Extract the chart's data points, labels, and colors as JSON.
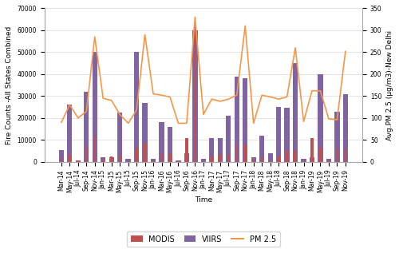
{
  "time_labels": [
    "Mar-14",
    "May-14",
    "Jul-14",
    "Sep-14",
    "Nov-14",
    "Jan-15",
    "Mar-15",
    "May-15",
    "Jul-15",
    "Sep-15",
    "Nov-15",
    "Jan-16",
    "Mar-16",
    "May-16",
    "Jul-16",
    "Sep-16",
    "Nov-16",
    "Jan-17",
    "Mar-17",
    "May-17",
    "Jul-17",
    "Sep-17",
    "Nov-17",
    "Jan-18",
    "Mar-18",
    "May-18",
    "Jul-18",
    "Sep-18",
    "Nov-18",
    "Jan-19",
    "Mar-19",
    "May-19",
    "Jul-19",
    "Sep-19",
    "Nov-19"
  ],
  "modis": [
    1500,
    3000,
    800,
    7000,
    12000,
    800,
    2500,
    3000,
    400,
    6000,
    8500,
    300,
    4000,
    3500,
    300,
    11000,
    62000,
    300,
    2500,
    3000,
    3500,
    8000,
    8000,
    800,
    2000,
    800,
    2500,
    5000,
    5000,
    300,
    11000,
    6500,
    300,
    6000,
    6000
  ],
  "viirs": [
    5500,
    26000,
    800,
    32000,
    50000,
    2000,
    2000,
    22500,
    1200,
    50000,
    27000,
    1200,
    18000,
    16000,
    800,
    4000,
    60000,
    1200,
    11000,
    11000,
    21000,
    39000,
    38000,
    2000,
    12000,
    4000,
    25000,
    24500,
    45000,
    1200,
    2000,
    40000,
    1500,
    23000,
    31000
  ],
  "pm25": [
    90,
    130,
    100,
    115,
    285,
    145,
    140,
    108,
    88,
    118,
    290,
    155,
    152,
    148,
    88,
    88,
    330,
    108,
    143,
    138,
    143,
    152,
    310,
    88,
    152,
    148,
    143,
    148,
    260,
    92,
    162,
    162,
    98,
    96,
    252
  ],
  "modis_color": "#c0504d",
  "viirs_color": "#8064a2",
  "pm25_color": "#f79646",
  "ylim_left": [
    0,
    70000
  ],
  "ylim_right": [
    0,
    350
  ],
  "ylabel_left": "Fire Counts -All States Combined",
  "ylabel_right": "Avg.PM 2.5 (μg/m3)-New Delhi",
  "xlabel": "Time",
  "grid_color": "#d9d9d9",
  "background_color": "#ffffff",
  "tick_label_fontsize": 5.5,
  "axis_label_fontsize": 6.5,
  "legend_fontsize": 7,
  "viirs_bar_width": 0.6,
  "modis_bar_width": 0.3
}
